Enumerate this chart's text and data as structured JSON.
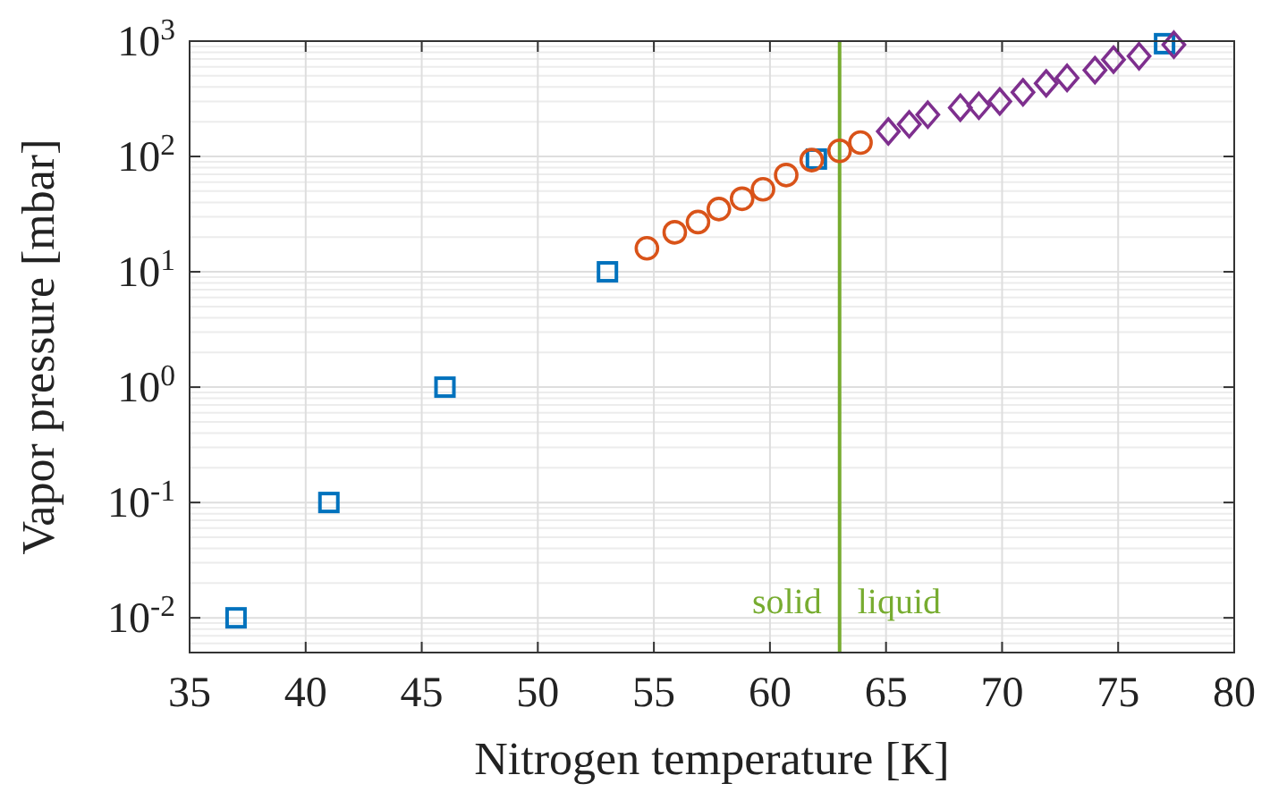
{
  "chart_data": {
    "type": "scatter",
    "xlabel": "Nitrogen temperature [K]",
    "ylabel": "Vapor pressure [mbar]",
    "log": "y",
    "grid": true,
    "xlim": [
      35,
      80
    ],
    "xticks": [
      35,
      40,
      45,
      50,
      55,
      60,
      65,
      70,
      75,
      80
    ],
    "ylim": [
      0.005,
      1000
    ],
    "yticks": [
      {
        "value": 0.01,
        "label": "10$^{-2}$"
      },
      {
        "value": 0.1,
        "label": "10$^{-1}$"
      },
      {
        "value": 1,
        "label": "10$^{0}$"
      },
      {
        "value": 10,
        "label": "10$^{1}$"
      },
      {
        "value": 100,
        "label": "10$^{2}$"
      },
      {
        "value": 1000,
        "label": "10$^{3}$"
      }
    ],
    "series": [
      {
        "color": "#0072bd",
        "marker": "square",
        "x": [
          37,
          41,
          46,
          53,
          62,
          77
        ],
        "values": [
          0.01,
          0.1,
          1,
          10,
          95,
          950
        ]
      },
      {
        "color": "#d95319",
        "marker": "circle",
        "x": [
          54.7,
          55.9,
          56.9,
          57.8,
          58.8,
          59.7,
          60.7,
          61.8,
          63.0,
          63.9
        ],
        "values": [
          16,
          22,
          27,
          35,
          43,
          52,
          69,
          93,
          112,
          132
        ]
      },
      {
        "color": "#7e2f8e",
        "marker": "diamond",
        "x": [
          65.1,
          66.0,
          66.8,
          68.2,
          69.0,
          69.9,
          70.9,
          71.9,
          72.8,
          74.0,
          74.8,
          75.9,
          77.4
        ],
        "values": [
          165,
          190,
          230,
          265,
          275,
          300,
          360,
          430,
          480,
          560,
          690,
          740,
          930
        ]
      }
    ],
    "ref_lines": [
      {
        "axis": "x",
        "value": 63,
        "color": "#77ac30"
      }
    ],
    "annotations": [
      "solid",
      "liquid"
    ]
  }
}
